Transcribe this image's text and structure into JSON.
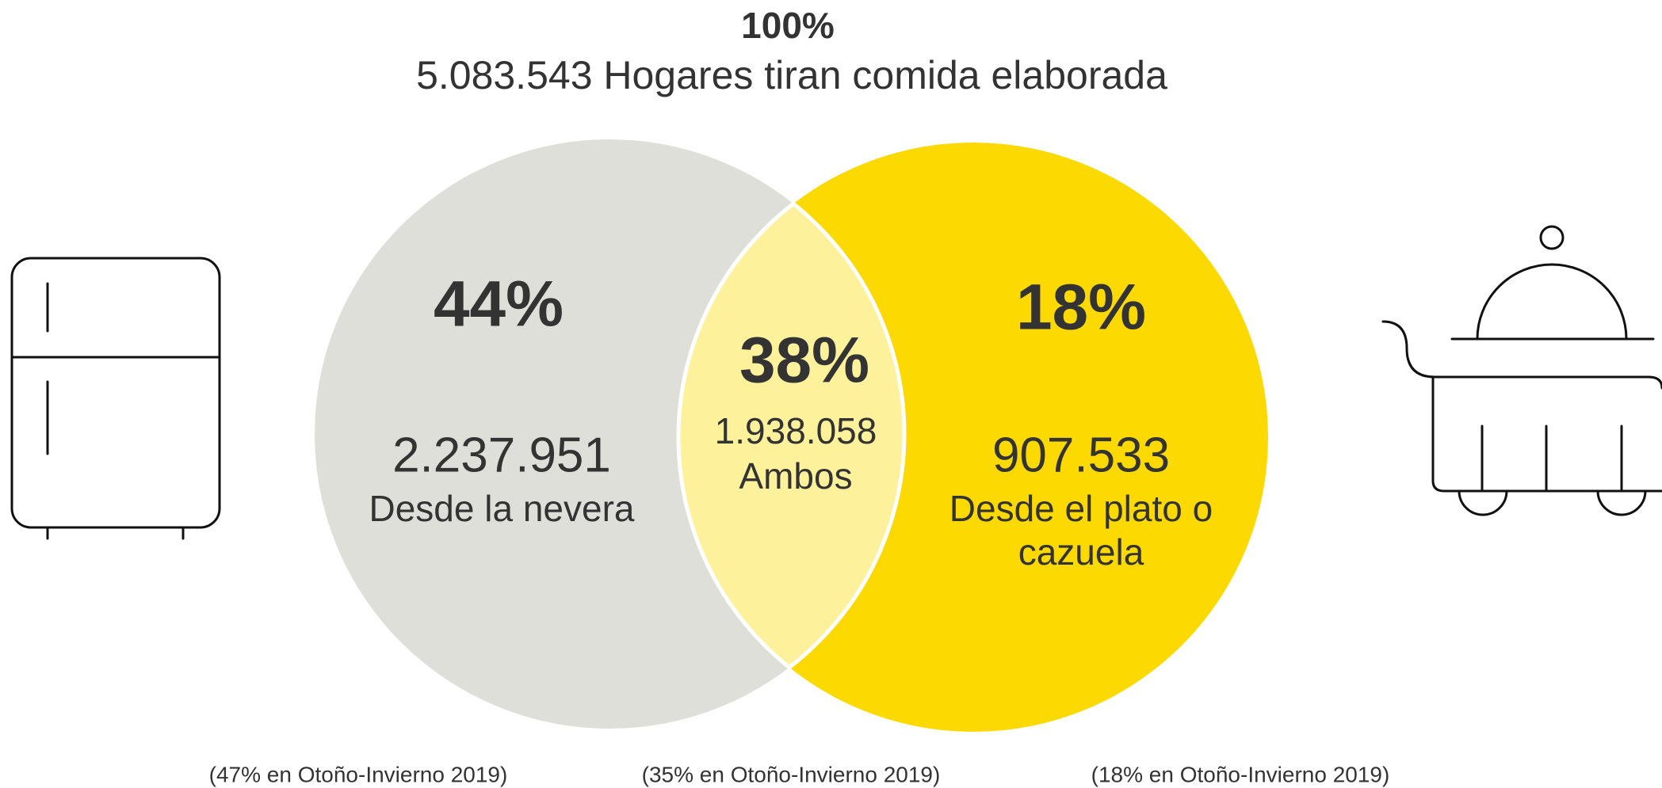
{
  "header": {
    "title": "100%",
    "subtitle": "5.083.543 Hogares tiran comida elaborada"
  },
  "sets": [
    {
      "percent": "44%",
      "count": "2.237.951",
      "label": [
        "Desde la nevera"
      ],
      "note": "(47% en Otoño-Invierno 2019)"
    },
    {
      "percent": "18%",
      "count": "907.533",
      "label": [
        "Desde el plato o",
        "cazuela"
      ],
      "note": "(18% en Otoño-Invierno 2019)"
    }
  ],
  "intersection": {
    "percent": "38%",
    "count": "1.938.058",
    "label": [
      "Ambos"
    ],
    "note": "(35% en Otoño-Invierno 2019)"
  }
}
